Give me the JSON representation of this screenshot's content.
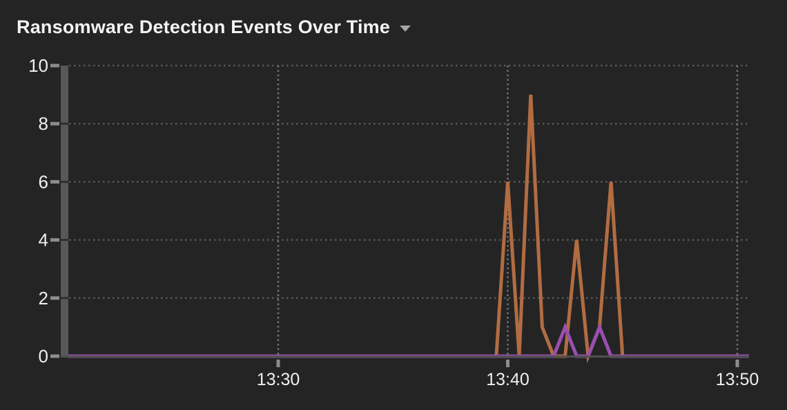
{
  "header": {
    "title": "Ransomware Detection Events Over Time",
    "dropdown_icon": "caret-down"
  },
  "colors": {
    "background": "#242424",
    "title_text": "#f3f3f3",
    "axis_text": "#f0f0f0",
    "axis_bar": "#585858",
    "axis_bar_notch": "#303030",
    "baseline": "#505050",
    "h_gridline": "#585858",
    "v_gridline": "#757575",
    "tick_dash": "#8c8c8c",
    "orange_series": "#b26c42",
    "purple_series": "#9a4fb0"
  },
  "chart_data": {
    "type": "line",
    "title": "Ransomware Detection Events Over Time",
    "xlabel": "",
    "ylabel": "",
    "ylim": [
      0,
      10
    ],
    "y_ticks": [
      0,
      2,
      4,
      6,
      8,
      10
    ],
    "x_ticks": [
      "13:30",
      "13:40",
      "13:50"
    ],
    "x_range_estimate": [
      "13:21",
      "13:51"
    ],
    "grid": "dotted",
    "legend": "none",
    "series": [
      {
        "name": "orange-series",
        "color": "#b26c42",
        "baseline_value_elsewhere": 0,
        "points": [
          [
            "13:39:30",
            0
          ],
          [
            "13:40:00",
            6
          ],
          [
            "13:40:30",
            0
          ],
          [
            "13:41:00",
            9
          ],
          [
            "13:41:30",
            1
          ],
          [
            "13:42:00",
            0
          ],
          [
            "13:42:30",
            0
          ],
          [
            "13:43:00",
            4
          ],
          [
            "13:43:30",
            0
          ],
          [
            "13:44:00",
            1
          ],
          [
            "13:44:30",
            6
          ],
          [
            "13:45:00",
            0
          ]
        ]
      },
      {
        "name": "purple-series",
        "color": "#9a4fb0",
        "baseline_value_elsewhere": 0,
        "points": [
          [
            "13:42:00",
            0
          ],
          [
            "13:42:30",
            1
          ],
          [
            "13:43:00",
            0
          ],
          [
            "13:43:30",
            0
          ],
          [
            "13:44:00",
            1
          ],
          [
            "13:44:30",
            0
          ]
        ]
      }
    ]
  }
}
